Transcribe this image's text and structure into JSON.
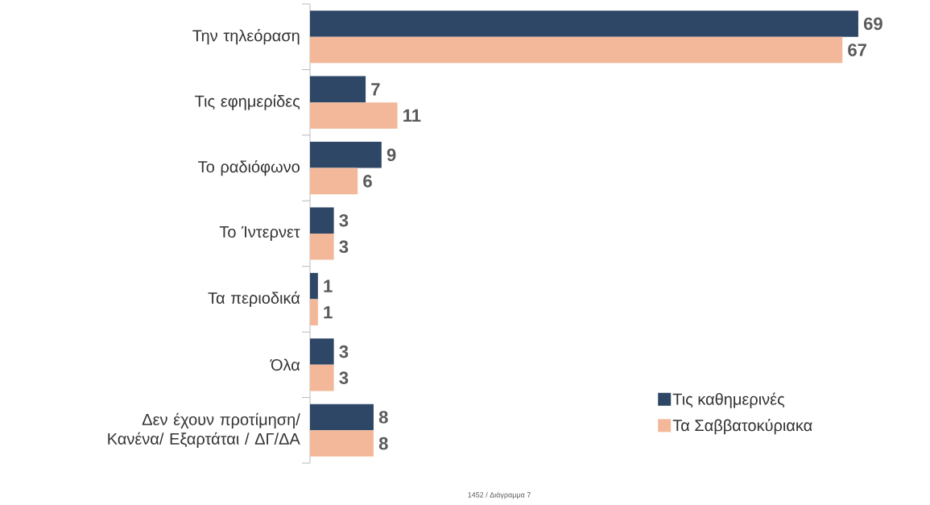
{
  "chart_data": {
    "type": "bar",
    "orientation": "horizontal",
    "categories": [
      "Την τηλεόραση",
      "Τις εφημερίδες",
      "Το ραδιόφωνο",
      "Το Ίντερνετ",
      "Τα περιοδικά",
      "Όλα",
      "Δεν έχουν προτίμηση/ Κανένα/ Εξαρτάται / ΔΓ/ΔΑ"
    ],
    "series": [
      {
        "name": "Τις καθημερινές",
        "color": "#2e4766",
        "values": [
          69,
          7,
          9,
          3,
          1,
          3,
          8
        ]
      },
      {
        "name": "Τα Σαββατοκύριακα",
        "color": "#f2b899",
        "values": [
          67,
          11,
          6,
          3,
          1,
          3,
          8
        ]
      }
    ],
    "tick_labels": "y",
    "data_labels": true,
    "legend": "bottom right",
    "annotations": [
      "1452 / Διάγραμμα 7"
    ]
  }
}
